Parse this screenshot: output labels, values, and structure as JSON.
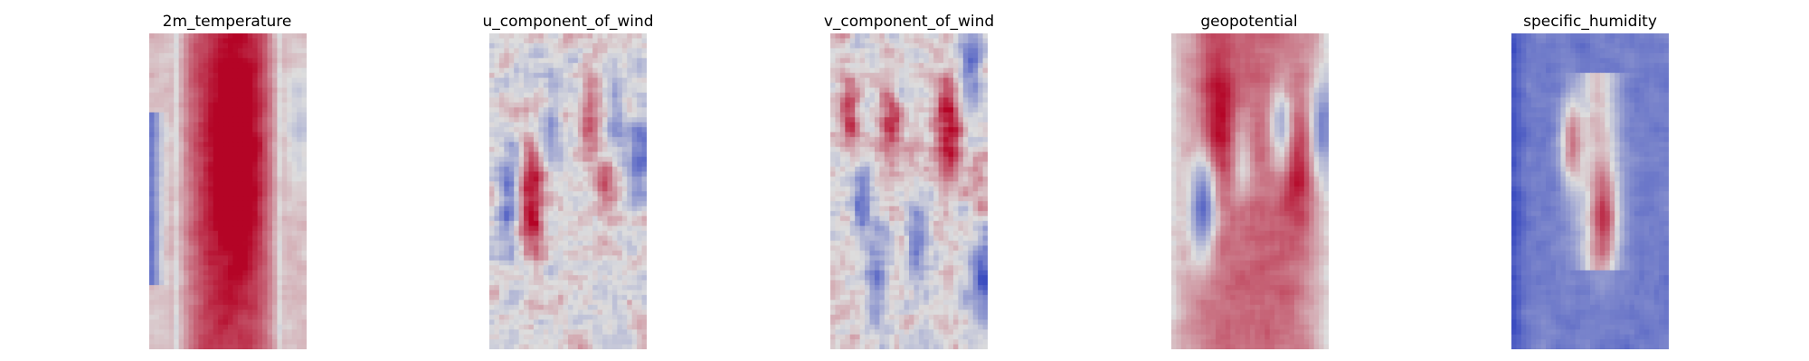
{
  "chart_data": {
    "type": "heatmap",
    "colormap": "coolwarm",
    "colors": {
      "low": "#3b4cc0",
      "mid": "#dddddd",
      "high": "#b40426"
    },
    "grid": false,
    "axes_visible": false,
    "panels": [
      {
        "title": "2m_temperature",
        "pattern": "Warm band across the centre of the field, coolest at the left edge, mild warm margins on the right.",
        "value_range": [
          -1,
          1
        ],
        "features": [
          {
            "kind": "band",
            "center_x": 0.5,
            "half_width": 0.33,
            "strength": 0.75
          },
          {
            "kind": "blob",
            "x": 0.55,
            "y": 0.28,
            "r": 0.12,
            "v": 0.35
          },
          {
            "kind": "blob",
            "x": 0.55,
            "y": 0.5,
            "r": 0.12,
            "v": 0.3
          },
          {
            "kind": "edge",
            "side": "left",
            "y_from": 0.25,
            "y_to": 0.8,
            "v": -0.9
          },
          {
            "kind": "blob",
            "x": 0.95,
            "y": 0.28,
            "r": 0.06,
            "v": -0.35
          }
        ]
      },
      {
        "title": "u_component_of_wind",
        "pattern": "Mostly neutral field with scattered small warm and cool streaks, strongest warm spot left of centre.",
        "value_range": [
          -1,
          1
        ],
        "features": [
          {
            "kind": "blob",
            "x": 0.27,
            "y": 0.53,
            "r": 0.06,
            "v": 0.95
          },
          {
            "kind": "blob",
            "x": 0.12,
            "y": 0.52,
            "r": 0.05,
            "v": -0.8
          },
          {
            "kind": "blob",
            "x": 0.95,
            "y": 0.4,
            "r": 0.05,
            "v": -0.7
          },
          {
            "kind": "blob",
            "x": 0.4,
            "y": 0.32,
            "r": 0.05,
            "v": -0.45
          },
          {
            "kind": "blob",
            "x": 0.65,
            "y": 0.28,
            "r": 0.05,
            "v": 0.5
          },
          {
            "kind": "blob",
            "x": 0.75,
            "y": 0.48,
            "r": 0.05,
            "v": 0.45
          },
          {
            "kind": "blob",
            "x": 0.8,
            "y": 0.28,
            "r": 0.04,
            "v": -0.55
          }
        ]
      },
      {
        "title": "v_component_of_wind",
        "pattern": "Noisy alternating warm and cool cells, strong warm spot upper right, cool patch lower right.",
        "value_range": [
          -1,
          1
        ],
        "features": [
          {
            "kind": "blob",
            "x": 0.75,
            "y": 0.3,
            "r": 0.06,
            "v": 1.0
          },
          {
            "kind": "blob",
            "x": 0.38,
            "y": 0.3,
            "r": 0.05,
            "v": 0.8
          },
          {
            "kind": "blob",
            "x": 0.12,
            "y": 0.25,
            "r": 0.04,
            "v": 0.8
          },
          {
            "kind": "blob",
            "x": 0.97,
            "y": 0.75,
            "r": 0.06,
            "v": -0.85
          },
          {
            "kind": "blob",
            "x": 0.3,
            "y": 0.75,
            "r": 0.05,
            "v": -0.6
          },
          {
            "kind": "blob",
            "x": 0.2,
            "y": 0.55,
            "r": 0.04,
            "v": -0.7
          },
          {
            "kind": "blob",
            "x": 0.9,
            "y": 0.1,
            "r": 0.05,
            "v": -0.65
          },
          {
            "kind": "blob",
            "x": 0.95,
            "y": 0.55,
            "r": 0.05,
            "v": 0.5
          },
          {
            "kind": "blob",
            "x": 0.55,
            "y": 0.65,
            "r": 0.05,
            "v": -0.55
          }
        ]
      },
      {
        "title": "geopotential",
        "pattern": "Warm field overall with strong maxima on the upper left and right, cool streaks on the left side.",
        "value_range": [
          -1,
          1
        ],
        "features": [
          {
            "kind": "band",
            "center_x": 0.5,
            "half_width": 0.5,
            "strength": 0.55
          },
          {
            "kind": "blob",
            "x": 0.3,
            "y": 0.25,
            "r": 0.07,
            "v": 0.5
          },
          {
            "kind": "blob",
            "x": 0.8,
            "y": 0.45,
            "r": 0.07,
            "v": 0.5
          },
          {
            "kind": "blob",
            "x": 0.2,
            "y": 0.55,
            "r": 0.06,
            "v": -1.2
          },
          {
            "kind": "blob",
            "x": 0.7,
            "y": 0.3,
            "r": 0.05,
            "v": -0.9
          },
          {
            "kind": "blob",
            "x": 0.95,
            "y": 0.3,
            "r": 0.05,
            "v": -0.8
          },
          {
            "kind": "blob",
            "x": 0.45,
            "y": 0.4,
            "r": 0.05,
            "v": -0.5
          }
        ]
      },
      {
        "title": "specific_humidity",
        "pattern": "Cool (low) field with a thin warm ridge running down the centre and a sharp maximum near the upper middle.",
        "value_range": [
          -1,
          1
        ],
        "features": [
          {
            "kind": "baseline",
            "v": -0.65
          },
          {
            "kind": "ridge",
            "x": 0.55,
            "y_from": 0.12,
            "y_to": 0.75,
            "half_width": 0.09,
            "v": 1.1
          },
          {
            "kind": "blob",
            "x": 0.38,
            "y": 0.35,
            "r": 0.05,
            "v": 1.0
          },
          {
            "kind": "blob",
            "x": 0.6,
            "y": 0.58,
            "r": 0.06,
            "v": 0.7
          },
          {
            "kind": "edge",
            "side": "left",
            "y_from": 0.0,
            "y_to": 1.0,
            "v": -0.3
          }
        ]
      }
    ]
  }
}
